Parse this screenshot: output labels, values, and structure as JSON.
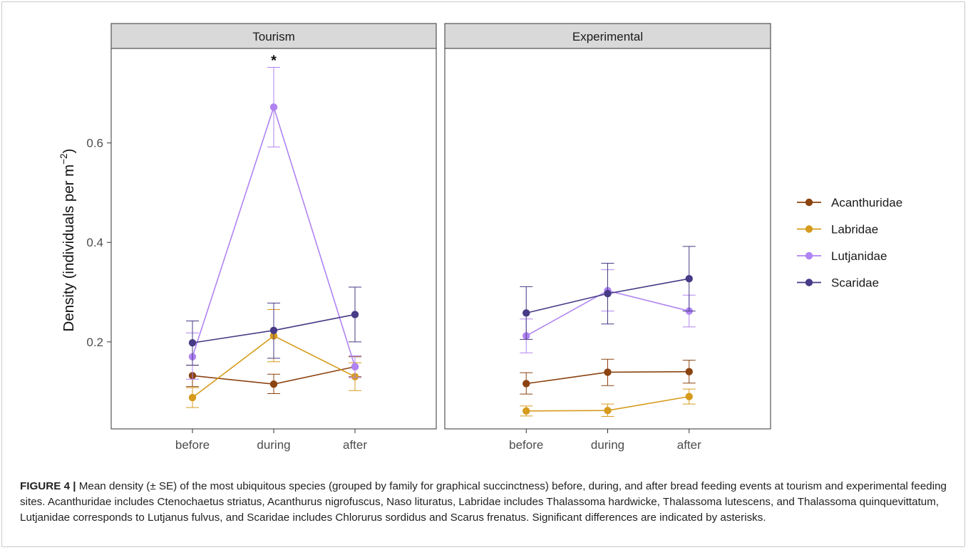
{
  "chart_data": {
    "type": "line",
    "facets": [
      {
        "label": "Tourism",
        "categories": [
          "before",
          "during",
          "after"
        ],
        "series": [
          {
            "name": "Acanthuridae",
            "values": [
              0.132,
              0.115,
              0.15
            ],
            "se_low": [
              0.11,
              0.096,
              0.13
            ],
            "se_high": [
              0.153,
              0.135,
              0.17
            ]
          },
          {
            "name": "Labridae",
            "values": [
              0.088,
              0.212,
              0.13
            ],
            "se_low": [
              0.068,
              0.16,
              0.102
            ],
            "se_high": [
              0.108,
              0.265,
              0.158
            ]
          },
          {
            "name": "Lutjanidae",
            "values": [
              0.17,
              0.672,
              0.15
            ],
            "se_low": [
              0.125,
              0.592,
              0.128
            ],
            "se_high": [
              0.218,
              0.752,
              0.172
            ]
          },
          {
            "name": "Scaridae",
            "values": [
              0.198,
              0.223,
              0.255
            ],
            "se_low": [
              0.153,
              0.167,
              0.2
            ],
            "se_high": [
              0.242,
              0.278,
              0.31
            ]
          }
        ],
        "annotations": [
          {
            "category": "during",
            "text": "*"
          }
        ]
      },
      {
        "label": "Experimental",
        "categories": [
          "before",
          "during",
          "after"
        ],
        "series": [
          {
            "name": "Acanthuridae",
            "values": [
              0.116,
              0.139,
              0.14
            ],
            "se_low": [
              0.095,
              0.112,
              0.117
            ],
            "se_high": [
              0.138,
              0.165,
              0.163
            ]
          },
          {
            "name": "Labridae",
            "values": [
              0.061,
              0.062,
              0.09
            ],
            "se_low": [
              0.051,
              0.05,
              0.075
            ],
            "se_high": [
              0.071,
              0.075,
              0.105
            ]
          },
          {
            "name": "Lutjanidae",
            "values": [
              0.212,
              0.303,
              0.262
            ],
            "se_low": [
              0.178,
              0.262,
              0.23
            ],
            "se_high": [
              0.246,
              0.345,
              0.294
            ]
          },
          {
            "name": "Scaridae",
            "values": [
              0.258,
              0.297,
              0.327
            ],
            "se_low": [
              0.205,
              0.236,
              0.262
            ],
            "se_high": [
              0.311,
              0.358,
              0.392
            ]
          }
        ],
        "annotations": []
      }
    ],
    "ylabel": "Density (individuals per m",
    "ylabel_superscript": "−2",
    "ylabel_close": ")",
    "ylim": [
      0.025,
      0.79
    ],
    "yticks": [
      0.2,
      0.4,
      0.6
    ],
    "ytick_labels": [
      "0.2",
      "0.4",
      "0.6"
    ],
    "legend_position": "right",
    "legend": [
      "Acanthuridae",
      "Labridae",
      "Lutjanidae",
      "Scaridae"
    ],
    "colors": {
      "Acanthuridae": "#8b4310",
      "Labridae": "#d69b1c",
      "Lutjanidae": "#b083f2",
      "Scaridae": "#473a86"
    },
    "panel_strip_color": "#d9d9d9",
    "grid": false
  },
  "caption": {
    "label": "FIGURE 4 |",
    "text": " Mean density (± SE) of the most ubiquitous species (grouped by family for graphical succinctness) before, during, and after bread feeding events at tourism and experimental feeding sites. Acanthuridae includes Ctenochaetus striatus, Acanthurus nigrofuscus, Naso lituratus, Labridae includes Thalassoma hardwicke, Thalassoma lutescens, and Thalassoma quinquevittatum, Lutjanidae corresponds to Lutjanus fulvus, and Scaridae includes Chlorurus sordidus and Scarus frenatus. Significant differences are indicated by asterisks."
  }
}
